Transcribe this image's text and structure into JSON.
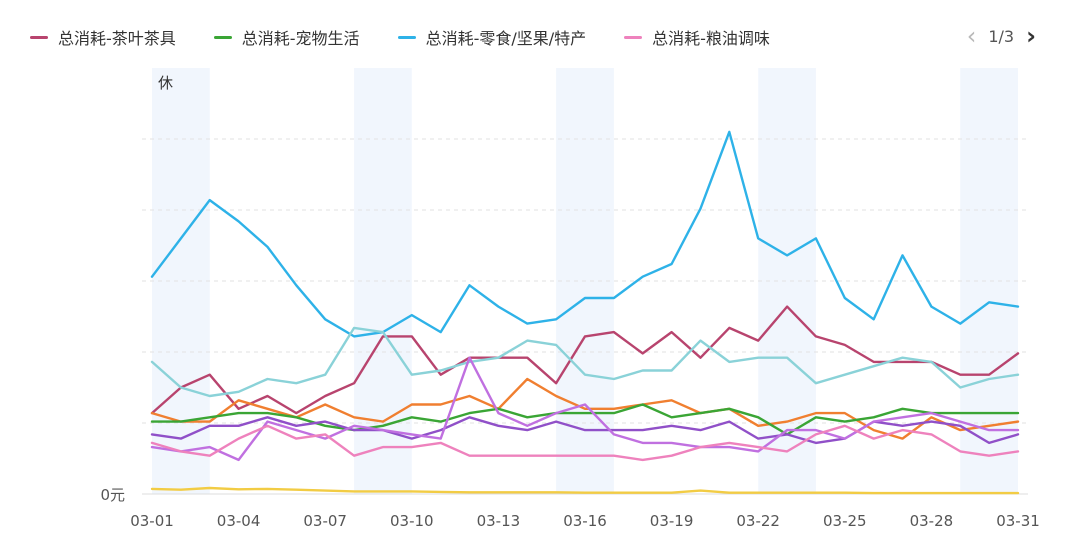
{
  "legend": {
    "items": [
      {
        "label": "总消耗-茶叶茶具",
        "color": "#b8446e"
      },
      {
        "label": "总消耗-宠物生活",
        "color": "#3aa535"
      },
      {
        "label": "总消耗-零食/坚果/特产",
        "color": "#2eb2e8"
      },
      {
        "label": "总消耗-粮油调味",
        "color": "#ee82bd"
      }
    ]
  },
  "pager": {
    "prev_icon": "chevron-left-icon",
    "text": "1/3",
    "next_icon": "chevron-right-icon"
  },
  "chart_data": {
    "type": "line",
    "x": [
      "03-01",
      "03-02",
      "03-03",
      "03-04",
      "03-05",
      "03-06",
      "03-07",
      "03-08",
      "03-09",
      "03-10",
      "03-11",
      "03-12",
      "03-13",
      "03-14",
      "03-15",
      "03-16",
      "03-17",
      "03-18",
      "03-19",
      "03-20",
      "03-21",
      "03-22",
      "03-23",
      "03-24",
      "03-25",
      "03-26",
      "03-27",
      "03-28",
      "03-29",
      "03-30",
      "03-31"
    ],
    "x_tick_labels": [
      "03-01",
      "03-04",
      "03-07",
      "03-10",
      "03-13",
      "03-16",
      "03-19",
      "03-22",
      "03-25",
      "03-28",
      "03-31"
    ],
    "y_tick_labels": [
      "0元"
    ],
    "ylim": [
      0,
      100
    ],
    "grid": "horizontal-dashed",
    "legend_position": "top-left",
    "rest_day_label": "休",
    "rest_days": [
      "03-02",
      "03-09",
      "03-16",
      "03-23",
      "03-30"
    ],
    "series": [
      {
        "name": "总消耗-零食/坚果/特产",
        "color": "#2eb2e8",
        "values": [
          51,
          60,
          69,
          64,
          58,
          49,
          41,
          37,
          38,
          42,
          38,
          49,
          44,
          40,
          41,
          46,
          46,
          51,
          54,
          67,
          85,
          60,
          56,
          60,
          46,
          41,
          56,
          44,
          40,
          45,
          44
        ]
      },
      {
        "name": "总消耗-茶叶茶具",
        "color": "#b8446e",
        "values": [
          19,
          25,
          28,
          20,
          23,
          19,
          23,
          26,
          37,
          37,
          28,
          32,
          32,
          32,
          26,
          37,
          38,
          33,
          38,
          32,
          39,
          36,
          44,
          37,
          35,
          31,
          31,
          31,
          28,
          28,
          33
        ]
      },
      {
        "name": "",
        "color": "#8ad2d8",
        "values": [
          31,
          25,
          23,
          24,
          27,
          26,
          28,
          39,
          38,
          28,
          29,
          31,
          32,
          36,
          35,
          28,
          27,
          29,
          29,
          36,
          31,
          32,
          32,
          26,
          28,
          30,
          32,
          31,
          25,
          27,
          28
        ]
      },
      {
        "name": "",
        "color": "#f07f30",
        "values": [
          19,
          17,
          17,
          22,
          20,
          18,
          21,
          18,
          17,
          21,
          21,
          23,
          20,
          27,
          23,
          20,
          20,
          21,
          22,
          19,
          20,
          16,
          17,
          19,
          19,
          15,
          13,
          18,
          15,
          16,
          17
        ]
      },
      {
        "name": "总消耗-宠物生活",
        "color": "#3aa535",
        "values": [
          17,
          17,
          18,
          19,
          19,
          18,
          16,
          15,
          16,
          18,
          17,
          19,
          20,
          18,
          19,
          19,
          19,
          21,
          18,
          19,
          20,
          18,
          14,
          18,
          17,
          18,
          20,
          19,
          19,
          19,
          19
        ]
      },
      {
        "name": "",
        "color": "#9050c8",
        "values": [
          14,
          13,
          16,
          16,
          18,
          16,
          17,
          15,
          15,
          13,
          15,
          18,
          16,
          15,
          17,
          15,
          15,
          15,
          16,
          15,
          17,
          13,
          14,
          12,
          13,
          17,
          16,
          17,
          16,
          12,
          14
        ]
      },
      {
        "name": "",
        "color": "#c070e0",
        "values": [
          11,
          10,
          11,
          8,
          17,
          15,
          13,
          16,
          15,
          14,
          13,
          32,
          19,
          16,
          19,
          21,
          14,
          12,
          12,
          11,
          11,
          10,
          15,
          15,
          13,
          17,
          18,
          19,
          17,
          15,
          15
        ]
      },
      {
        "name": "总消耗-粮油调味",
        "color": "#ee82bd",
        "values": [
          12,
          10,
          9,
          13,
          16,
          13,
          14,
          9,
          11,
          11,
          12,
          9,
          9,
          9,
          9,
          9,
          9,
          8,
          9,
          11,
          12,
          11,
          10,
          14,
          16,
          13,
          15,
          14,
          10,
          9,
          10
        ]
      },
      {
        "name": "",
        "color": "#f2cc44",
        "values": [
          1.2,
          1,
          1.4,
          1.1,
          1.2,
          1,
          0.8,
          0.6,
          0.6,
          0.6,
          0.5,
          0.4,
          0.4,
          0.4,
          0.4,
          0.3,
          0.3,
          0.3,
          0.3,
          0.8,
          0.3,
          0.3,
          0.3,
          0.3,
          0.3,
          0.2,
          0.2,
          0.2,
          0.2,
          0.2,
          0.2
        ]
      }
    ]
  }
}
